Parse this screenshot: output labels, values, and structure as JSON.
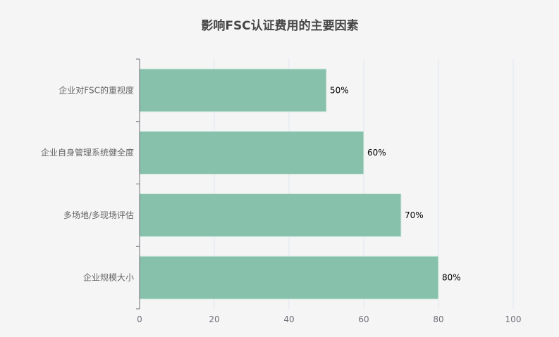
{
  "chart_data": {
    "type": "bar",
    "orientation": "horizontal",
    "title": "影响FSC认证费用的主要因素",
    "categories": [
      "企业对FSC的重视度",
      "企业自身管理系统健全度",
      "多场地/多现场评估",
      "企业规模大小"
    ],
    "values": [
      50,
      60,
      70,
      80
    ],
    "data_labels": [
      "50%",
      "60%",
      "70%",
      "80%"
    ],
    "xlim": [
      0,
      100
    ],
    "x_ticks": [
      "0",
      "20",
      "40",
      "60",
      "80",
      "100"
    ],
    "grid": true,
    "bar_color": "#87c1ab",
    "bar_border_color": "#d6ece3",
    "xlabel": "",
    "ylabel": ""
  }
}
